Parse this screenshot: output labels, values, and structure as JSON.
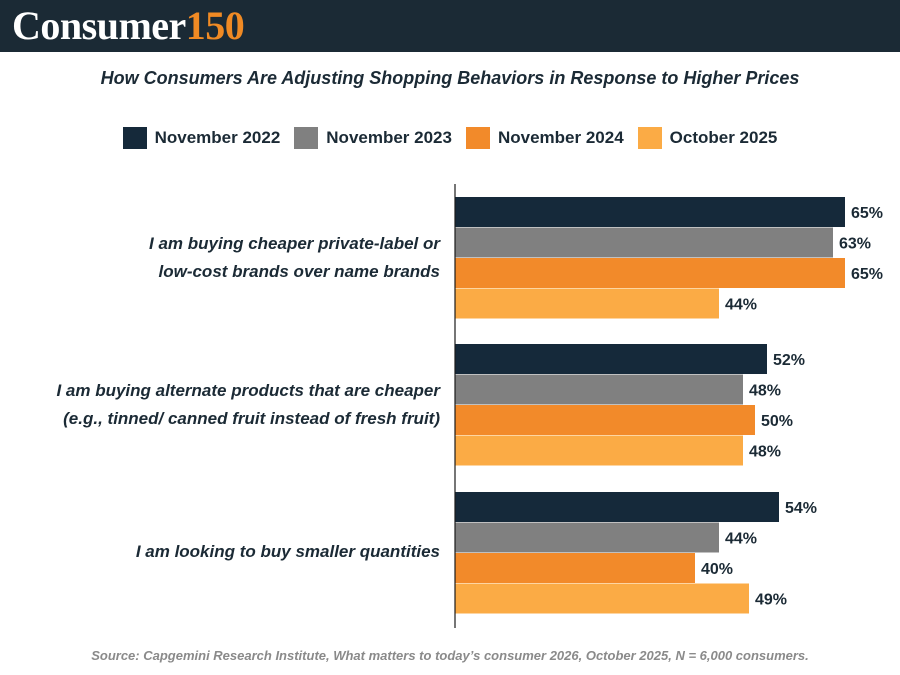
{
  "header": {
    "brand_word": "Consumer",
    "brand_number": "150"
  },
  "colors": {
    "header_bg": "#1b2a35",
    "brand_accent": "#f08a24",
    "value_label": "#1b2a35"
  },
  "chart_data": {
    "type": "bar",
    "orientation": "horizontal",
    "title": "How Consumers Are Adjusting Shopping Behaviors in Response to Higher Prices",
    "xlabel": "",
    "ylabel": "",
    "xlim": [
      0,
      70
    ],
    "value_suffix": "%",
    "grid": false,
    "legend_position": "top-center",
    "categories": [
      {
        "lines": [
          "I am buying cheaper private-label or",
          "low-cost brands over name brands"
        ]
      },
      {
        "lines": [
          "I am buying alternate products that are cheaper",
          "(e.g., tinned/ canned fruit instead of fresh fruit)"
        ]
      },
      {
        "lines": [
          "I am looking to buy smaller quantities"
        ]
      }
    ],
    "series": [
      {
        "name": "November 2022",
        "color": "#15293a",
        "values": [
          65,
          52,
          54
        ]
      },
      {
        "name": "November 2023",
        "color": "#808080",
        "values": [
          63,
          48,
          44
        ]
      },
      {
        "name": "November 2024",
        "color": "#f28a2a",
        "values": [
          65,
          50,
          40
        ]
      },
      {
        "name": "October 2025",
        "color": "#fbab45",
        "values": [
          44,
          48,
          49
        ]
      }
    ]
  },
  "source": "Source: Capgemini Research Institute, What matters to today’s consumer 2026, October 2025, N = 6,000 consumers."
}
